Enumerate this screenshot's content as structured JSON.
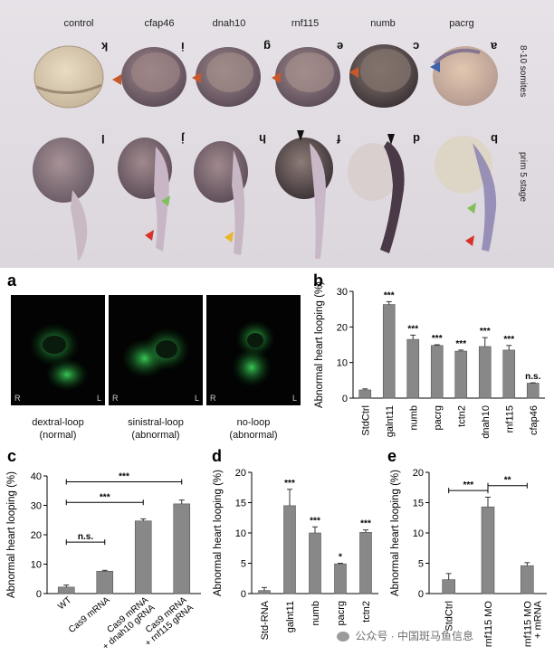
{
  "top_panel": {
    "columns": [
      "control",
      "cfap46",
      "dnah10",
      "rnf115",
      "numb",
      "pacrg"
    ],
    "row1_letters": [
      "k",
      "i",
      "g",
      "e",
      "c",
      "a"
    ],
    "row2_letters": [
      "l",
      "j",
      "h",
      "f",
      "d",
      "b"
    ],
    "row1_label": "8-10 somites",
    "row2_label": "prim 5 stage"
  },
  "panel_letters": {
    "a": "a",
    "b": "b",
    "c": "c",
    "d": "d",
    "e": "e"
  },
  "fluo": {
    "side_left": "R",
    "side_right": "L",
    "captions": [
      {
        "line1": "dextral-loop",
        "line2": "(normal)"
      },
      {
        "line1": "sinistral-loop",
        "line2": "(abnormal)"
      },
      {
        "line1": "no-loop",
        "line2": "(abnormal)"
      }
    ]
  },
  "colors": {
    "bar": "#888888",
    "axis": "#000000",
    "fluo_green": "#2fb64a"
  },
  "chart_data": [
    {
      "id": "b",
      "type": "bar",
      "ylabel": "Abnormal heart looping (%)",
      "ylim": [
        0,
        30
      ],
      "yticks": [
        0,
        10,
        20,
        30
      ],
      "categories": [
        "StdCtrl",
        "galnt11",
        "numb",
        "pacrg",
        "tctn2",
        "dnah10",
        "rnf115",
        "cfap46"
      ],
      "values": [
        2.3,
        26.3,
        16.5,
        14.8,
        13.2,
        14.5,
        13.5,
        4.2
      ],
      "errors": [
        0.3,
        0.8,
        1.2,
        0.2,
        0.3,
        2.5,
        1.3,
        0.1
      ],
      "significance": [
        "",
        "***",
        "***",
        "***",
        "***",
        "***",
        "***",
        "n.s."
      ]
    },
    {
      "id": "c",
      "type": "bar",
      "ylabel": "Abnormal heart looping (%)",
      "ylim": [
        0,
        40
      ],
      "yticks": [
        0,
        10,
        20,
        30,
        40
      ],
      "categories": [
        [
          "WT"
        ],
        [
          "Cas9 mRNA"
        ],
        [
          "Cas9 mRNA",
          "+ dnah10 gRNA"
        ],
        [
          "Cas9 mRNA",
          "+ rnf115 gRNA"
        ]
      ],
      "values": [
        2.2,
        7.6,
        24.7,
        30.5
      ],
      "errors": [
        0.7,
        0.3,
        0.7,
        1.3
      ],
      "brackets": [
        {
          "from": 0,
          "to": 1,
          "label": "n.s.",
          "y": 17.5
        },
        {
          "from": 0,
          "to": 2,
          "label": "***",
          "y": 31
        },
        {
          "from": 0,
          "to": 3,
          "label": "***",
          "y": 38
        }
      ]
    },
    {
      "id": "d",
      "type": "bar",
      "ylabel": "Abnormal heart looping (%)",
      "ylim": [
        0,
        20
      ],
      "yticks": [
        0,
        5,
        10,
        15,
        20
      ],
      "categories": [
        "Std-RNA",
        "galnt11",
        "numb",
        "pacrg",
        "tctn2"
      ],
      "values": [
        0.5,
        14.5,
        10,
        4.9,
        10.1
      ],
      "errors": [
        0.5,
        2.7,
        1.0,
        0.1,
        0.4
      ],
      "significance": [
        "",
        "***",
        "***",
        "*",
        "***"
      ]
    },
    {
      "id": "e",
      "type": "bar",
      "ylabel": "Abnormal heart looping (%)",
      "ylim": [
        0,
        20
      ],
      "yticks": [
        0,
        5,
        10,
        15,
        20
      ],
      "categories": [
        [
          "StdCtrl"
        ],
        [
          "rnf115 MO"
        ],
        [
          "rnf115 MO",
          "+ mRNA"
        ]
      ],
      "values": [
        2.3,
        14.3,
        4.6
      ],
      "errors": [
        1.0,
        1.6,
        0.5
      ],
      "brackets": [
        {
          "from": 0,
          "to": 1,
          "label": "***",
          "y": 17
        },
        {
          "from": 1,
          "to": 2,
          "label": "**",
          "y": 17.8
        }
      ]
    }
  ],
  "watermark": "公众号 · 中国斑马鱼信息"
}
